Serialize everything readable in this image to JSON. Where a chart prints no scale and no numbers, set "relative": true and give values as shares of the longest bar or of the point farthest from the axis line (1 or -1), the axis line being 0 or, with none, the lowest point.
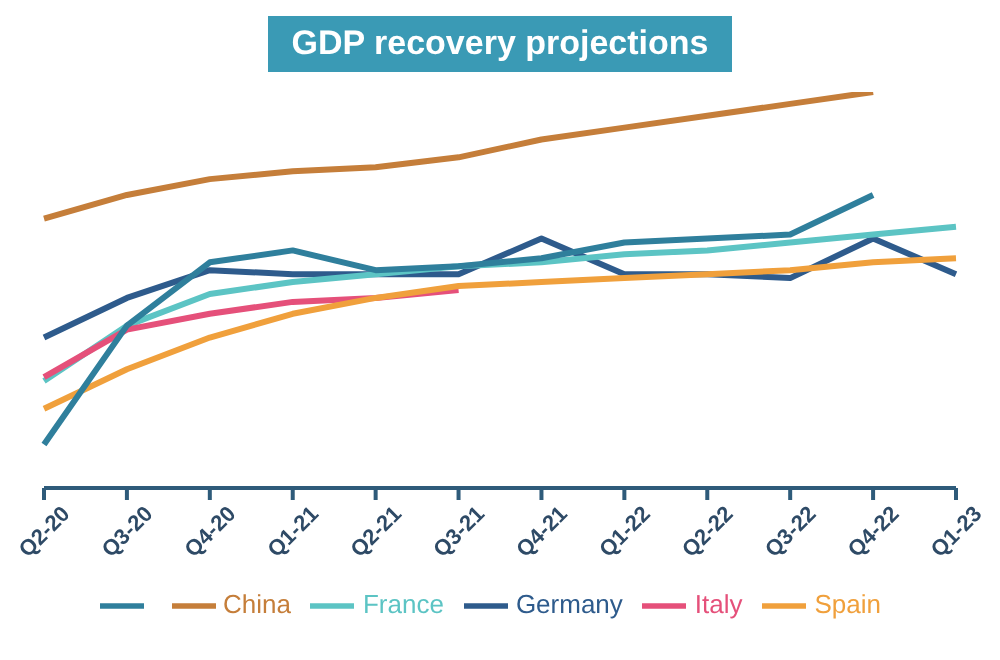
{
  "chart_data": {
    "type": "line",
    "title": "GDP recovery projections",
    "relative": true,
    "legend": "bottom",
    "grid": false,
    "marker": "none",
    "line_style": "solid",
    "categories": [
      "Q2-20",
      "Q3-20",
      "Q4-20",
      "Q1-21",
      "Q2-21",
      "Q3-21",
      "Q4-21",
      "Q1-22",
      "Q2-22",
      "Q3-22",
      "Q4-22",
      "Q1-23"
    ],
    "series": [
      {
        "name": "Germany",
        "color": "#2e5b8c",
        "values": [
          0.38,
          0.48,
          0.55,
          0.54,
          0.54,
          0.54,
          0.63,
          0.54,
          0.54,
          0.53,
          0.63,
          0.54
        ]
      },
      {
        "name": "France",
        "color": "#5cc4c4",
        "values": [
          0.27,
          0.41,
          0.49,
          0.52,
          0.54,
          0.56,
          0.57,
          0.59,
          0.6,
          0.62,
          0.64,
          0.66
        ]
      },
      {
        "name": "Italy",
        "color": "#e5507a",
        "values": [
          0.28,
          0.4,
          0.44,
          0.47,
          0.48,
          0.5,
          null,
          null,
          null,
          null,
          null,
          null
        ]
      },
      {
        "name": "Spain",
        "color": "#f0a03c",
        "values": [
          0.2,
          0.3,
          0.38,
          0.44,
          0.48,
          0.51,
          0.52,
          0.53,
          0.54,
          0.55,
          0.57,
          0.58
        ]
      },
      {
        "name": "China",
        "color": "#c57e3a",
        "values": [
          0.68,
          0.74,
          0.78,
          0.8,
          0.81,
          0.835,
          0.88,
          0.91,
          0.94,
          0.97,
          1,
          null
        ]
      },
      {
        "color": "#2f7f9c",
        "values": [
          0.11,
          0.41,
          0.57,
          0.6,
          0.55,
          0.56,
          0.58,
          0.62,
          0.63,
          0.64,
          0.74,
          null
        ]
      }
    ]
  }
}
